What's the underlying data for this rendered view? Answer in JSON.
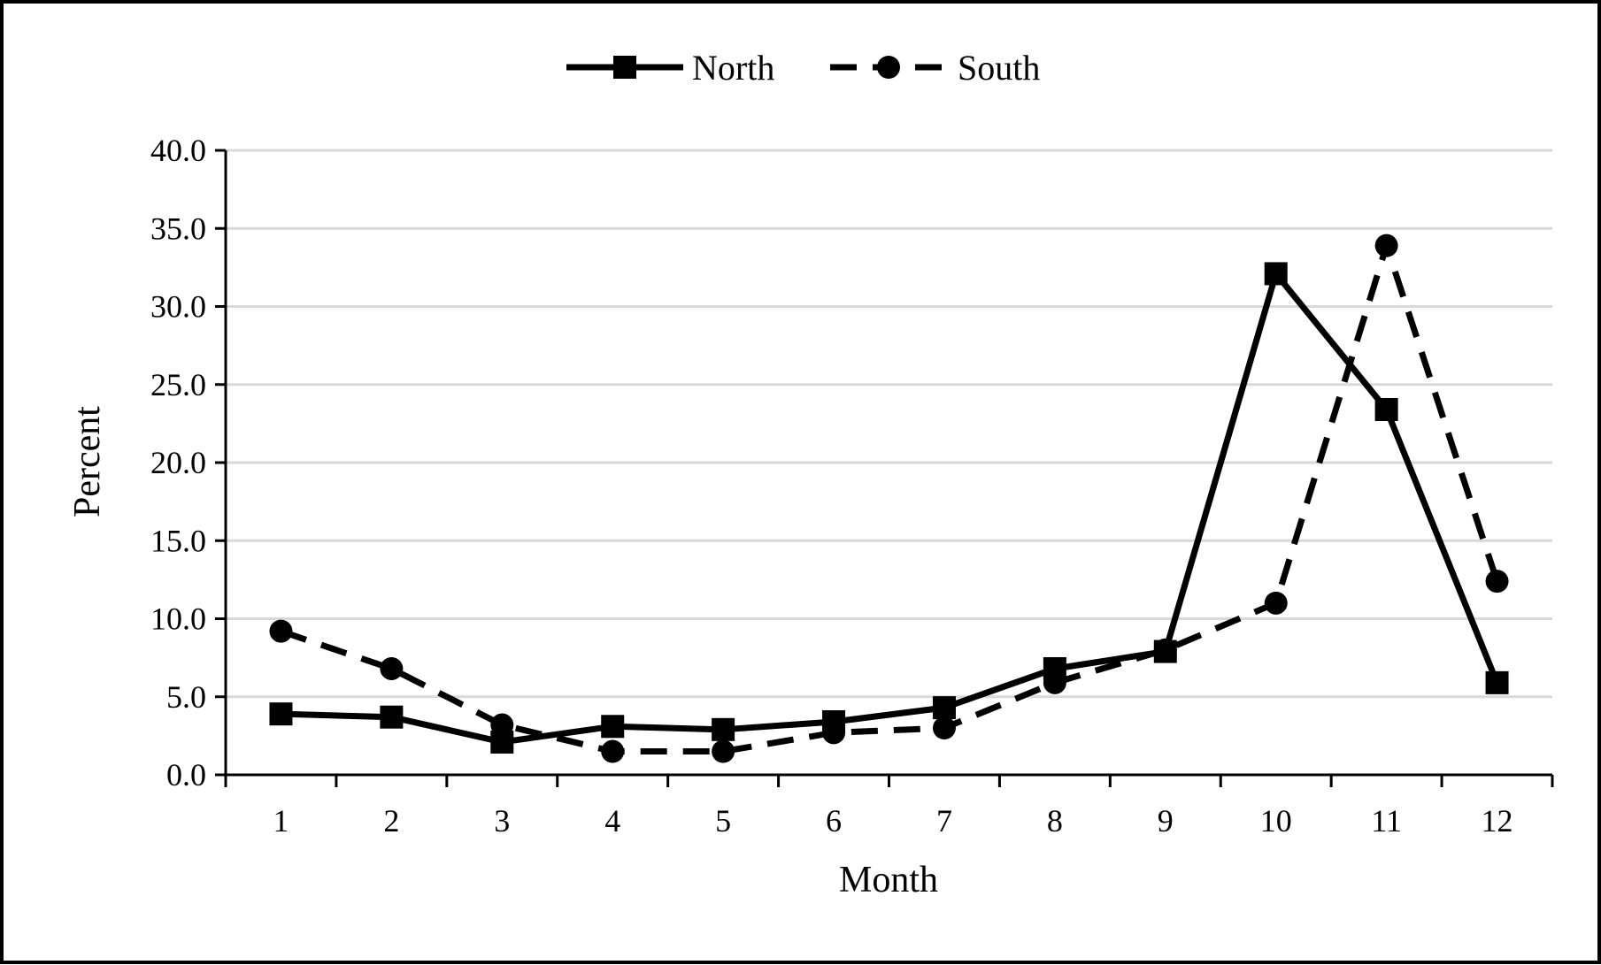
{
  "chart_data": {
    "type": "line",
    "title": "",
    "xlabel": "Month",
    "ylabel": "Percent",
    "x": [
      1,
      2,
      3,
      4,
      5,
      6,
      7,
      8,
      9,
      10,
      11,
      12
    ],
    "x_tick_labels": [
      "1",
      "2",
      "3",
      "4",
      "5",
      "6",
      "7",
      "8",
      "9",
      "10",
      "11",
      "12"
    ],
    "ylim": [
      0,
      40
    ],
    "y_ticks": [
      0,
      5,
      10,
      15,
      20,
      25,
      30,
      35,
      40
    ],
    "y_tick_labels": [
      "0.0",
      "5.0",
      "10.0",
      "15.0",
      "20.0",
      "25.0",
      "30.0",
      "35.0",
      "40.0"
    ],
    "grid": "horizontal",
    "legend_position": "top-center",
    "series": [
      {
        "name": "North",
        "line_style": "solid",
        "marker": "square",
        "color": "#000000",
        "values": [
          3.9,
          3.7,
          2.1,
          3.1,
          2.9,
          3.4,
          4.3,
          6.8,
          7.9,
          32.1,
          23.4,
          5.9
        ]
      },
      {
        "name": "South",
        "line_style": "dashed",
        "marker": "circle",
        "color": "#000000",
        "values": [
          9.2,
          6.8,
          3.2,
          1.5,
          1.5,
          2.7,
          3.0,
          5.9,
          8.0,
          11.0,
          33.9,
          12.4
        ]
      }
    ]
  }
}
